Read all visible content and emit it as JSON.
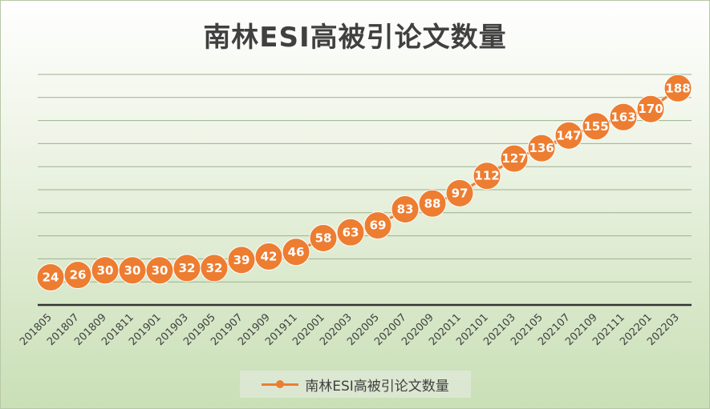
{
  "chart_data": {
    "type": "line",
    "title": "南林ESI高被引论文数量",
    "categories": [
      "201805",
      "201807",
      "201809",
      "201811",
      "201901",
      "201903",
      "201905",
      "201907",
      "201909",
      "201911",
      "202001",
      "202003",
      "202005",
      "202007",
      "202009",
      "202011",
      "202101",
      "202103",
      "202105",
      "202107",
      "202109",
      "202111",
      "202201",
      "202203"
    ],
    "series": [
      {
        "name": "南林ESI高被引论文数量",
        "color": "#ed7d31",
        "values": [
          24,
          26,
          30,
          30,
          30,
          32,
          32,
          39,
          42,
          46,
          58,
          63,
          69,
          83,
          88,
          97,
          112,
          127,
          136,
          147,
          155,
          163,
          170,
          188
        ]
      }
    ],
    "ylim": [
      0,
      200
    ],
    "grid": true,
    "legend": "bottom",
    "data_labels": true
  }
}
